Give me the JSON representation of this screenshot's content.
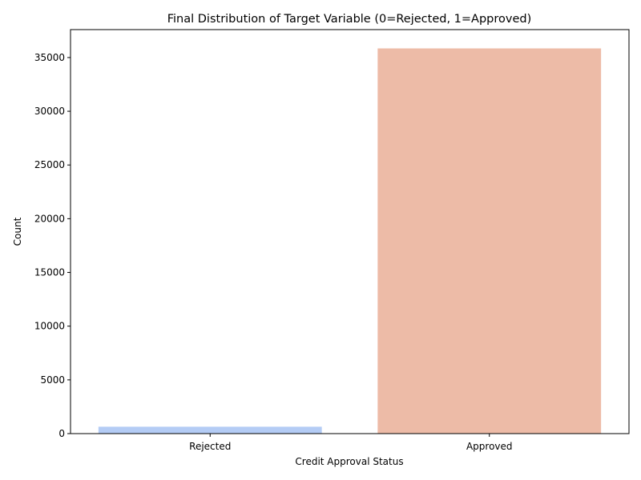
{
  "chart_data": {
    "type": "bar",
    "title": "Final Distribution of Target Variable (0=Rejected, 1=Approved)",
    "xlabel": "Credit Approval Status",
    "ylabel": "Count",
    "categories": [
      "Rejected",
      "Approved"
    ],
    "values": [
      640,
      35850
    ],
    "colors": [
      "#b4ccf5",
      "#edbba7"
    ],
    "ylim": [
      0,
      37600
    ],
    "yticks": [
      0,
      5000,
      10000,
      15000,
      20000,
      25000,
      30000,
      35000
    ],
    "grid": false,
    "legend": "none"
  }
}
